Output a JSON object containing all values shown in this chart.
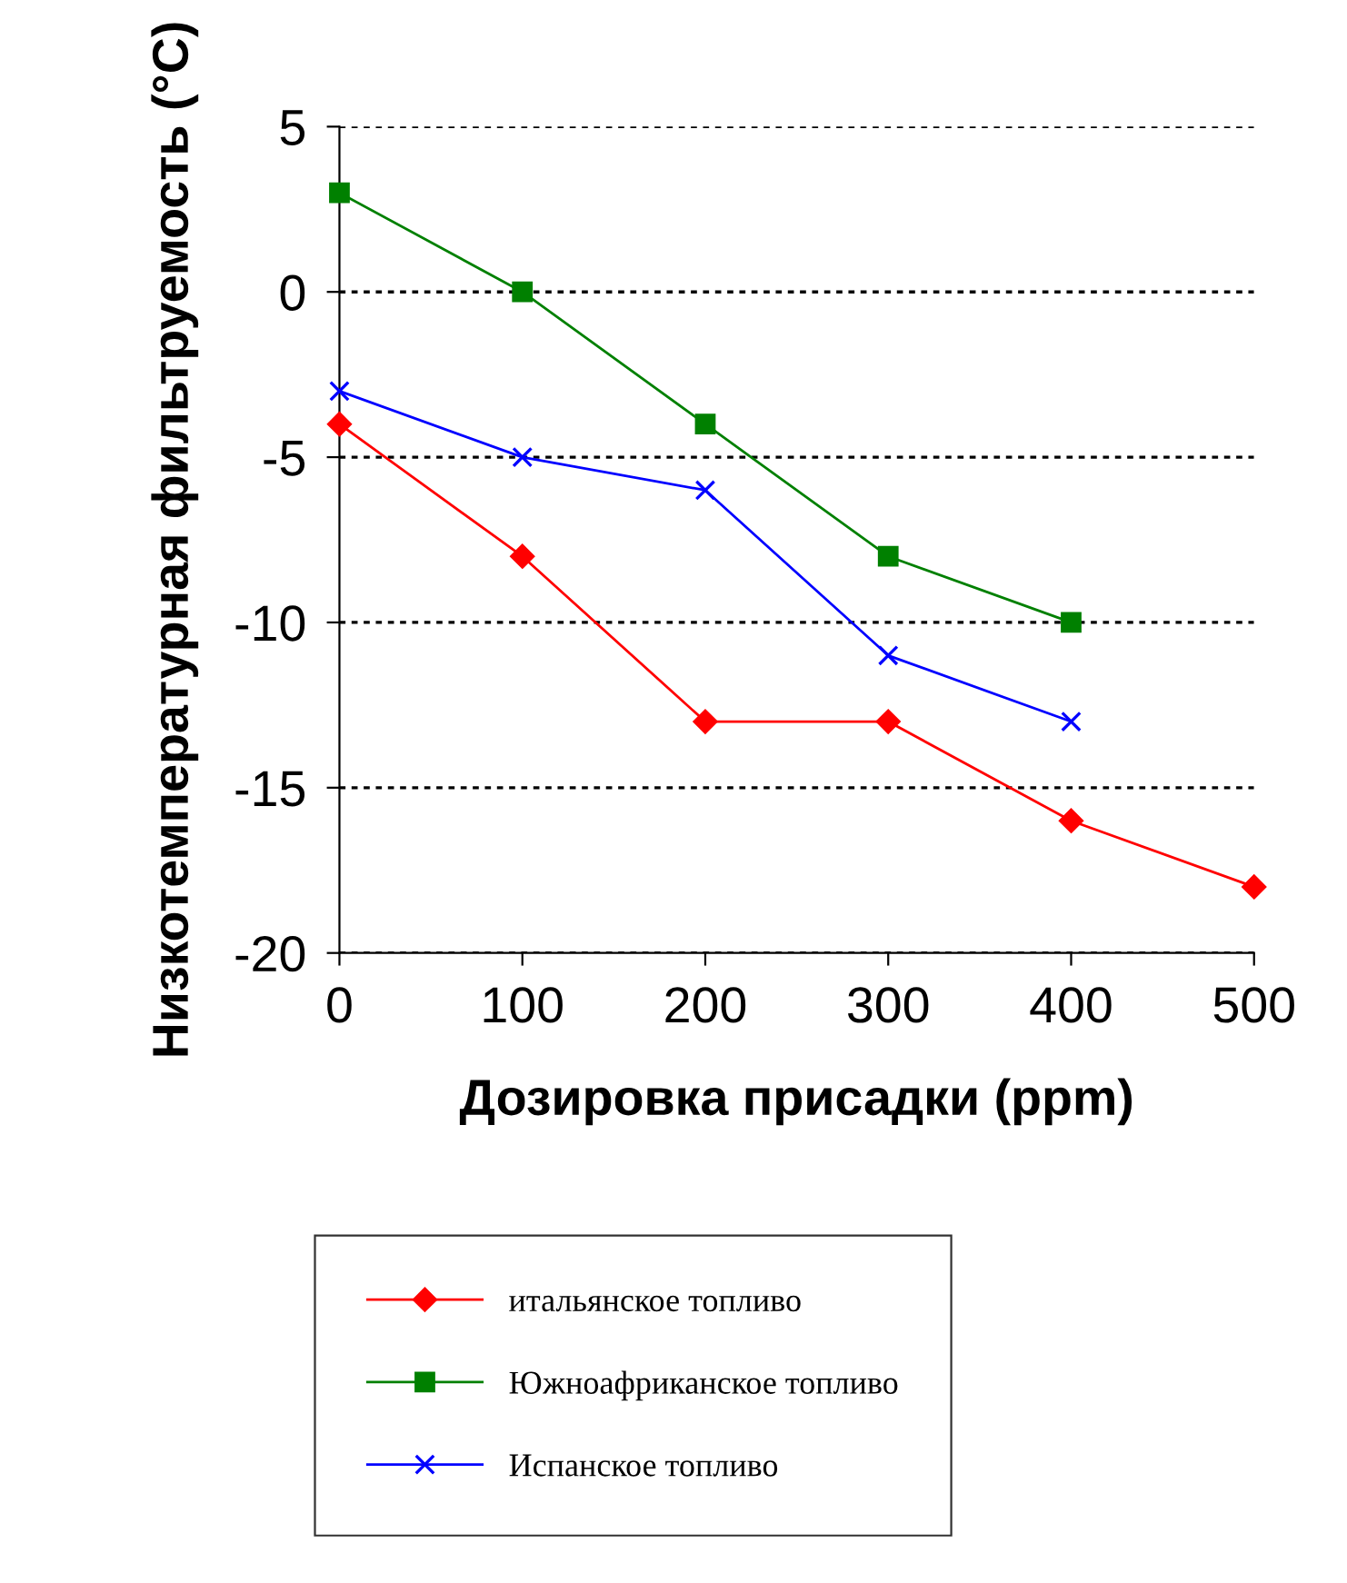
{
  "chart_data": {
    "type": "line",
    "xlabel": "Дозировка присадки (ppm)",
    "ylabel": "Низкотемпературная фильтруемость (°C)",
    "x": [
      0,
      100,
      200,
      300,
      400,
      500
    ],
    "series": [
      {
        "name": "итальянское топливо",
        "color": "#ff0000",
        "marker": "diamond",
        "values": [
          -4,
          -8,
          -13,
          -13,
          -16,
          -18
        ]
      },
      {
        "name": "Южноафриканское топливо",
        "color": "#008000",
        "marker": "square",
        "values": [
          3,
          0,
          -4,
          -8,
          -10,
          null
        ]
      },
      {
        "name": "Испанское топливо",
        "color": "#0000ff",
        "marker": "cross",
        "values": [
          -3,
          -5,
          -6,
          -11,
          -13,
          null
        ]
      }
    ],
    "xlim": [
      0,
      500
    ],
    "xticks": [
      0,
      100,
      200,
      300,
      400,
      500
    ],
    "ylim": [
      -20,
      5
    ],
    "yticks": [
      -20,
      -15,
      -10,
      -5,
      0,
      5
    ],
    "grid": "y",
    "legend": "bottom",
    "line_style": "solid"
  }
}
